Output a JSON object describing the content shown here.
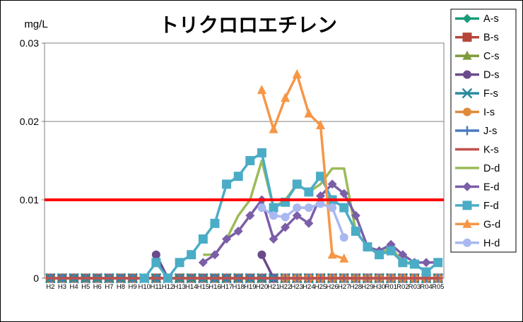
{
  "chart_data": {
    "type": "line",
    "title": "トリクロロエチレン",
    "unit": "mg/L",
    "ylim": [
      0,
      0.03
    ],
    "yticks": [
      0,
      0.01,
      0.02,
      0.03
    ],
    "ytick_labels": [
      "0",
      "0.01",
      "0.02",
      "0.03"
    ],
    "gridlines_y": [
      0.01,
      0.02
    ],
    "reference_line": {
      "value": 0.01,
      "color": "#ff0000"
    },
    "categories": [
      "H2",
      "H3",
      "H4",
      "H5",
      "H6",
      "H7",
      "H8",
      "H9",
      "H10",
      "H11",
      "H12",
      "H13",
      "H14",
      "H15",
      "H16",
      "H17",
      "H18",
      "H19",
      "H20",
      "H21",
      "H22",
      "H23",
      "H24",
      "H25",
      "H26",
      "H27",
      "H28",
      "H29",
      "H30",
      "R01",
      "R02",
      "R03",
      "R04",
      "R05"
    ],
    "legend_position": "right",
    "series": [
      {
        "name": "A-s",
        "color": "#1a9c7a",
        "marker": "diamond",
        "values": [
          0,
          0,
          0,
          0,
          0,
          0,
          0,
          0,
          0,
          0,
          0,
          0,
          0,
          0,
          0,
          0,
          0,
          0,
          0,
          0,
          0,
          0,
          0,
          0,
          0,
          0,
          0,
          0,
          0,
          0,
          0,
          0,
          0,
          0
        ]
      },
      {
        "name": "B-s",
        "color": "#b5473a",
        "marker": "square",
        "values": [
          0,
          0,
          0,
          0,
          0,
          0,
          0,
          0,
          0,
          0,
          0,
          0,
          0,
          0,
          0,
          0,
          0,
          0,
          0,
          0,
          0,
          0,
          0,
          0,
          0,
          0,
          0,
          0,
          0,
          0,
          0,
          0,
          0,
          0
        ]
      },
      {
        "name": "C-s",
        "color": "#7e9a3a",
        "marker": "triangle",
        "values": [
          0,
          0,
          0,
          0,
          0,
          0,
          0,
          0,
          0,
          0,
          0,
          0,
          0,
          0,
          0,
          0,
          0,
          0,
          0,
          0,
          0,
          0,
          0,
          0,
          0,
          0,
          0,
          0,
          0,
          0,
          0,
          0,
          0,
          0
        ]
      },
      {
        "name": "D-s",
        "color": "#6a4a8c",
        "marker": "circle",
        "values": [
          null,
          null,
          null,
          null,
          null,
          null,
          null,
          null,
          null,
          0.003,
          0,
          null,
          null,
          null,
          null,
          null,
          null,
          null,
          0.003,
          0,
          null,
          null,
          null,
          null,
          null,
          null,
          null,
          null,
          null,
          null,
          null,
          null,
          null,
          null
        ]
      },
      {
        "name": "F-s",
        "color": "#2a8a9e",
        "marker": "x",
        "values": [
          0,
          0,
          0,
          0,
          0,
          0,
          0,
          0,
          0,
          0,
          0,
          0,
          0,
          0,
          0,
          0,
          0,
          0,
          0,
          0,
          0,
          0,
          0,
          0,
          0,
          0,
          0,
          0,
          0,
          0,
          0,
          0,
          0,
          0
        ]
      },
      {
        "name": "I-s",
        "color": "#e08a3a",
        "marker": "circle",
        "values": [
          null,
          null,
          null,
          null,
          null,
          null,
          null,
          null,
          null,
          null,
          null,
          null,
          null,
          null,
          null,
          null,
          null,
          null,
          null,
          null,
          0,
          0,
          0,
          0,
          0,
          0,
          0,
          0,
          0,
          0,
          0,
          0,
          0,
          0
        ]
      },
      {
        "name": "J-s",
        "color": "#4a7ac0",
        "marker": "plus",
        "values": [
          0,
          0,
          0,
          0,
          0,
          0,
          0,
          0,
          0,
          0,
          0,
          0,
          0,
          0,
          0,
          0,
          0,
          0,
          0,
          0,
          0,
          0,
          0,
          0,
          0,
          0,
          0,
          0,
          0,
          0,
          0,
          0,
          0,
          0
        ]
      },
      {
        "name": "K-s",
        "color": "#c0504d",
        "marker": "dash",
        "values": [
          0,
          0,
          0,
          0,
          0,
          0,
          0,
          0,
          0,
          0,
          0,
          0,
          0,
          0,
          0,
          0,
          0,
          0,
          0,
          0,
          0,
          0,
          0,
          0,
          0,
          0,
          0,
          0,
          0,
          0,
          0,
          0,
          0,
          0
        ]
      },
      {
        "name": "D-d",
        "color": "#9bbb59",
        "marker": "none",
        "values": [
          null,
          null,
          null,
          null,
          null,
          null,
          null,
          null,
          null,
          null,
          null,
          null,
          null,
          0.003,
          0.003,
          0.005,
          0.008,
          0.01,
          0.015,
          0.009,
          0.01,
          0.012,
          0.011,
          0.012,
          0.014,
          0.014,
          0.006,
          0.004,
          0.003,
          0.004,
          0.002,
          0.002,
          0.002,
          0.002
        ]
      },
      {
        "name": "E-d",
        "color": "#7b5ea7",
        "marker": "diamond",
        "values": [
          null,
          null,
          null,
          null,
          null,
          null,
          null,
          null,
          null,
          null,
          null,
          null,
          null,
          0.002,
          0.003,
          0.005,
          0.006,
          0.008,
          0.01,
          0.005,
          0.0065,
          0.008,
          0.007,
          0.0105,
          0.012,
          0.0108,
          0.008,
          0.004,
          0.0035,
          0.0043,
          0.003,
          0.002,
          0.002,
          0.002
        ]
      },
      {
        "name": "F-d",
        "color": "#4bacc6",
        "marker": "square",
        "values": [
          null,
          null,
          null,
          null,
          null,
          null,
          null,
          null,
          0,
          0.002,
          0,
          0.002,
          0.003,
          0.005,
          0.007,
          0.012,
          0.013,
          0.015,
          0.016,
          0.009,
          0.0097,
          0.012,
          0.011,
          0.013,
          0.01,
          0.009,
          0.006,
          0.004,
          0.003,
          0.0035,
          0.002,
          0.0018,
          0.0008,
          0.002
        ]
      },
      {
        "name": "G-d",
        "color": "#f79646",
        "marker": "triangle",
        "values": [
          null,
          null,
          null,
          null,
          null,
          null,
          null,
          null,
          null,
          null,
          null,
          null,
          null,
          null,
          null,
          null,
          null,
          null,
          0.024,
          0.019,
          0.023,
          0.026,
          0.021,
          0.0195,
          0.003,
          0.0025,
          null,
          null,
          null,
          null,
          null,
          null,
          null,
          null
        ]
      },
      {
        "name": "H-d",
        "color": "#a9b8f0",
        "marker": "circle",
        "values": [
          null,
          null,
          null,
          null,
          null,
          null,
          null,
          null,
          null,
          null,
          null,
          null,
          null,
          null,
          null,
          null,
          null,
          null,
          0.009,
          0.008,
          0.0078,
          0.009,
          0.009,
          0.0095,
          0.009,
          0.0052,
          null,
          null,
          null,
          null,
          null,
          null,
          null,
          null
        ]
      }
    ]
  }
}
